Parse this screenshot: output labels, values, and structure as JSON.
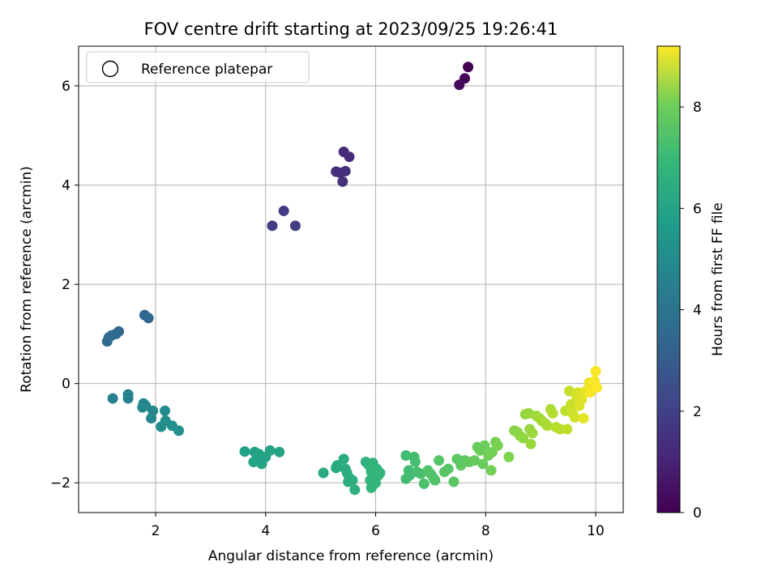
{
  "chart_data": {
    "type": "scatter",
    "title": "FOV centre drift starting at 2023/09/25 19:26:41",
    "xlabel": "Angular distance from reference (arcmin)",
    "ylabel": "Rotation from reference (arcmin)",
    "xlim": [
      0.6,
      10.5
    ],
    "ylim": [
      -2.6,
      6.8
    ],
    "x_ticks": [
      2,
      4,
      6,
      8,
      10
    ],
    "y_ticks": [
      -2,
      0,
      2,
      4,
      6
    ],
    "grid": true,
    "legend": {
      "placement": "top-left",
      "entries": [
        "Reference platepar"
      ]
    },
    "colorbar": {
      "label": "Hours from first FF file",
      "range": [
        0,
        9.2
      ],
      "ticks": [
        0,
        2,
        4,
        6,
        8
      ],
      "colormap": "viridis"
    },
    "points": [
      [
        7.68,
        6.38,
        0.0
      ],
      [
        7.62,
        6.15,
        0.1
      ],
      [
        7.52,
        6.02,
        0.2
      ],
      [
        5.42,
        4.67,
        1.1
      ],
      [
        5.52,
        4.57,
        1.15
      ],
      [
        5.28,
        4.27,
        1.2
      ],
      [
        5.35,
        4.25,
        1.2
      ],
      [
        5.45,
        4.28,
        1.25
      ],
      [
        5.4,
        4.07,
        1.3
      ],
      [
        4.33,
        3.48,
        1.6
      ],
      [
        4.12,
        3.18,
        1.65
      ],
      [
        4.54,
        3.18,
        1.7
      ],
      [
        1.8,
        1.38,
        3.0
      ],
      [
        1.87,
        1.32,
        3.05
      ],
      [
        1.33,
        1.05,
        3.1
      ],
      [
        1.28,
        1.0,
        3.12
      ],
      [
        1.2,
        0.97,
        3.15
      ],
      [
        1.15,
        0.93,
        3.18
      ],
      [
        1.12,
        0.85,
        3.2
      ],
      [
        1.22,
        -0.3,
        4.0
      ],
      [
        1.5,
        -0.22,
        4.1
      ],
      [
        1.5,
        -0.3,
        4.1
      ],
      [
        1.78,
        -0.4,
        4.2
      ],
      [
        1.82,
        -0.45,
        4.25
      ],
      [
        1.76,
        -0.48,
        4.3
      ],
      [
        1.95,
        -0.55,
        4.3
      ],
      [
        1.92,
        -0.7,
        4.35
      ],
      [
        2.17,
        -0.55,
        4.4
      ],
      [
        2.18,
        -0.75,
        4.45
      ],
      [
        2.1,
        -0.87,
        4.5
      ],
      [
        2.3,
        -0.85,
        4.55
      ],
      [
        2.42,
        -0.95,
        4.6
      ],
      [
        3.62,
        -1.37,
        5.2
      ],
      [
        3.8,
        -1.38,
        5.25
      ],
      [
        3.88,
        -1.42,
        5.3
      ],
      [
        4.0,
        -1.48,
        5.3
      ],
      [
        4.08,
        -1.35,
        5.35
      ],
      [
        4.25,
        -1.38,
        5.4
      ],
      [
        3.78,
        -1.58,
        5.35
      ],
      [
        3.93,
        -1.62,
        5.4
      ],
      [
        3.85,
        -1.5,
        5.3
      ],
      [
        5.05,
        -1.8,
        5.55
      ],
      [
        5.3,
        -1.65,
        5.6
      ],
      [
        5.28,
        -1.7,
        5.62
      ],
      [
        5.42,
        -1.52,
        5.65
      ],
      [
        5.45,
        -1.72,
        5.7
      ],
      [
        5.48,
        -1.8,
        5.72
      ],
      [
        5.52,
        -1.9,
        5.74
      ],
      [
        5.5,
        -1.98,
        5.76
      ],
      [
        5.58,
        -1.95,
        5.78
      ],
      [
        5.62,
        -2.14,
        5.8
      ],
      [
        5.82,
        -1.58,
        5.9
      ],
      [
        5.88,
        -1.65,
        5.92
      ],
      [
        5.92,
        -1.78,
        5.95
      ],
      [
        5.95,
        -1.6,
        5.95
      ],
      [
        5.98,
        -1.8,
        6.0
      ],
      [
        6.02,
        -1.72,
        6.0
      ],
      [
        6.05,
        -1.85,
        6.05
      ],
      [
        5.9,
        -1.95,
        6.02
      ],
      [
        5.95,
        -2.05,
        6.05
      ],
      [
        6.0,
        -2.0,
        6.05
      ],
      [
        6.08,
        -1.8,
        6.1
      ],
      [
        5.92,
        -2.1,
        6.1
      ],
      [
        6.55,
        -1.45,
        6.3
      ],
      [
        6.6,
        -1.75,
        6.35
      ],
      [
        6.62,
        -1.85,
        6.35
      ],
      [
        6.55,
        -1.92,
        6.4
      ],
      [
        6.7,
        -1.48,
        6.4
      ],
      [
        6.72,
        -1.58,
        6.45
      ],
      [
        6.75,
        -1.78,
        6.45
      ],
      [
        6.82,
        -1.82,
        6.5
      ],
      [
        6.88,
        -2.02,
        6.55
      ],
      [
        6.95,
        -1.75,
        6.6
      ],
      [
        7.0,
        -1.82,
        6.6
      ],
      [
        7.05,
        -1.9,
        6.65
      ],
      [
        7.08,
        -1.95,
        6.65
      ],
      [
        7.15,
        -1.55,
        6.7
      ],
      [
        7.25,
        -1.78,
        6.75
      ],
      [
        7.32,
        -1.72,
        6.75
      ],
      [
        7.42,
        -1.98,
        6.8
      ],
      [
        7.48,
        -1.52,
        6.85
      ],
      [
        7.55,
        -1.65,
        6.9
      ],
      [
        7.62,
        -1.55,
        6.9
      ],
      [
        7.7,
        -1.58,
        6.95
      ],
      [
        7.8,
        -1.55,
        7.0
      ],
      [
        7.85,
        -1.28,
        7.0
      ],
      [
        7.9,
        -1.35,
        7.05
      ],
      [
        7.95,
        -1.62,
        7.05
      ],
      [
        7.98,
        -1.25,
        7.1
      ],
      [
        8.05,
        -1.45,
        7.15
      ],
      [
        8.1,
        -1.75,
        7.2
      ],
      [
        8.12,
        -1.38,
        7.2
      ],
      [
        8.18,
        -1.18,
        7.25
      ],
      [
        8.22,
        -1.25,
        7.3
      ],
      [
        8.42,
        -1.48,
        7.4
      ],
      [
        8.52,
        -0.95,
        7.5
      ],
      [
        8.58,
        -0.98,
        7.55
      ],
      [
        8.62,
        -1.05,
        7.6
      ],
      [
        8.68,
        -1.1,
        7.65
      ],
      [
        8.72,
        -0.62,
        7.7
      ],
      [
        8.78,
        -0.6,
        7.75
      ],
      [
        8.8,
        -0.92,
        7.75
      ],
      [
        8.82,
        -1.22,
        7.8
      ],
      [
        8.85,
        -1.0,
        7.8
      ],
      [
        8.92,
        -0.65,
        7.85
      ],
      [
        8.98,
        -0.7,
        7.9
      ],
      [
        9.02,
        -0.75,
        7.95
      ],
      [
        9.08,
        -0.8,
        8.0
      ],
      [
        9.12,
        -0.85,
        8.0
      ],
      [
        9.18,
        -0.52,
        8.05
      ],
      [
        9.22,
        -0.6,
        8.1
      ],
      [
        9.28,
        -0.88,
        8.15
      ],
      [
        9.35,
        -0.92,
        8.2
      ],
      [
        9.45,
        -0.55,
        8.3
      ],
      [
        9.48,
        -0.92,
        8.3
      ],
      [
        9.52,
        -0.15,
        8.4
      ],
      [
        9.55,
        -0.42,
        8.45
      ],
      [
        9.58,
        -0.6,
        8.5
      ],
      [
        9.62,
        -0.68,
        8.55
      ],
      [
        9.65,
        -0.25,
        8.6
      ],
      [
        9.68,
        -0.18,
        8.65
      ],
      [
        9.7,
        -0.45,
        8.7
      ],
      [
        9.72,
        -0.28,
        8.75
      ],
      [
        9.75,
        -0.32,
        8.8
      ],
      [
        9.78,
        -0.7,
        8.85
      ],
      [
        9.82,
        -0.15,
        8.9
      ],
      [
        9.88,
        0.02,
        8.95
      ],
      [
        9.92,
        -0.05,
        9.0
      ],
      [
        9.95,
        0.0,
        9.05
      ],
      [
        9.98,
        0.05,
        9.1
      ],
      [
        10.0,
        0.25,
        9.15
      ],
      [
        10.02,
        -0.08,
        9.18
      ],
      [
        9.9,
        -0.18,
        9.1
      ]
    ]
  }
}
